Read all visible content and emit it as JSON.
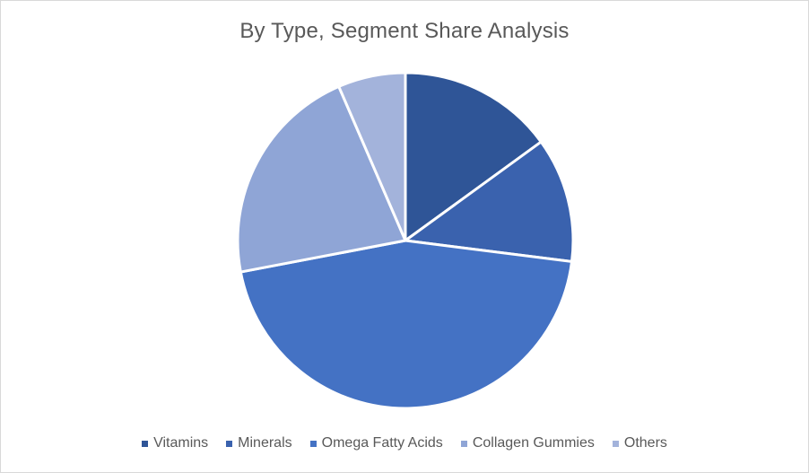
{
  "chart_data": {
    "type": "pie",
    "title": "By Type, Segment Share Analysis",
    "categories": [
      "Vitamins",
      "Minerals",
      "Omega Fatty Acids",
      "Collagen Gummies",
      "Others"
    ],
    "values": [
      15.0,
      12.0,
      45.0,
      21.5,
      6.5
    ],
    "colors": [
      "#2f5597",
      "#3a62ae",
      "#4472c4",
      "#8fa5d6",
      "#a3b3db"
    ],
    "start_angle_deg": 0,
    "direction": "clockwise",
    "legend_position": "bottom"
  }
}
